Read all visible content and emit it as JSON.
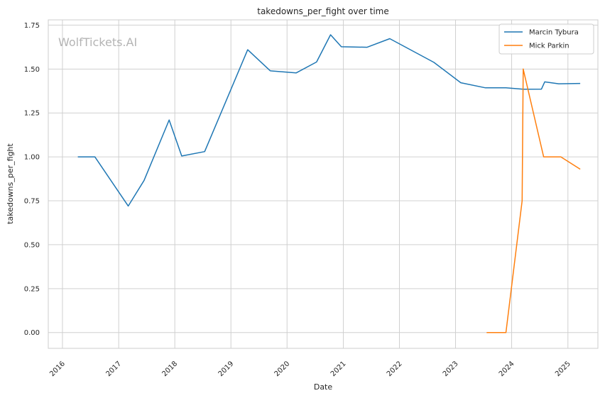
{
  "chart_data": {
    "type": "line",
    "title": "takedowns_per_fight over time",
    "xlabel": "Date",
    "ylabel": "takedowns_per_fight",
    "watermark": "WolfTickets.AI",
    "ylim": [
      -0.09,
      1.78
    ],
    "xlim": [
      "2015-10-01",
      "2025-07-15"
    ],
    "x_ticks": [
      "2016",
      "2017",
      "2018",
      "2019",
      "2020",
      "2021",
      "2022",
      "2023",
      "2024",
      "2025"
    ],
    "y_ticks": [
      "0.00",
      "0.25",
      "0.50",
      "0.75",
      "1.00",
      "1.25",
      "1.50",
      "1.75"
    ],
    "grid": true,
    "legend_position": "top-right",
    "series": [
      {
        "name": "Marcin Tybura",
        "color": "#1f77b4",
        "points": [
          [
            "2016-04-10",
            1.0
          ],
          [
            "2016-07-30",
            1.0
          ],
          [
            "2017-03-04",
            0.72
          ],
          [
            "2017-06-15",
            0.866
          ],
          [
            "2017-11-25",
            1.21
          ],
          [
            "2018-02-15",
            1.005
          ],
          [
            "2018-07-14",
            1.03
          ],
          [
            "2019-04-20",
            1.61
          ],
          [
            "2019-09-14",
            1.49
          ],
          [
            "2020-02-29",
            1.478
          ],
          [
            "2020-07-11",
            1.54
          ],
          [
            "2020-10-10",
            1.695
          ],
          [
            "2020-12-19",
            1.627
          ],
          [
            "2021-06-05",
            1.624
          ],
          [
            "2021-10-30",
            1.673
          ],
          [
            "2022-08-13",
            1.538
          ],
          [
            "2023-02-04",
            1.422
          ],
          [
            "2023-07-15",
            1.393
          ],
          [
            "2023-11-25",
            1.393
          ],
          [
            "2024-03-16",
            1.385
          ],
          [
            "2024-07-13",
            1.386
          ],
          [
            "2024-08-03",
            1.427
          ],
          [
            "2024-11-02",
            1.416
          ],
          [
            "2025-03-22",
            1.418
          ]
        ]
      },
      {
        "name": "Mick Parkin",
        "color": "#ff7f0e",
        "points": [
          [
            "2023-07-22",
            0.0
          ],
          [
            "2023-11-25",
            0.0
          ],
          [
            "2024-03-09",
            0.75
          ],
          [
            "2024-03-16",
            1.5
          ],
          [
            "2024-07-27",
            1.0
          ],
          [
            "2024-11-16",
            1.0
          ],
          [
            "2025-03-22",
            0.93
          ]
        ]
      }
    ]
  }
}
